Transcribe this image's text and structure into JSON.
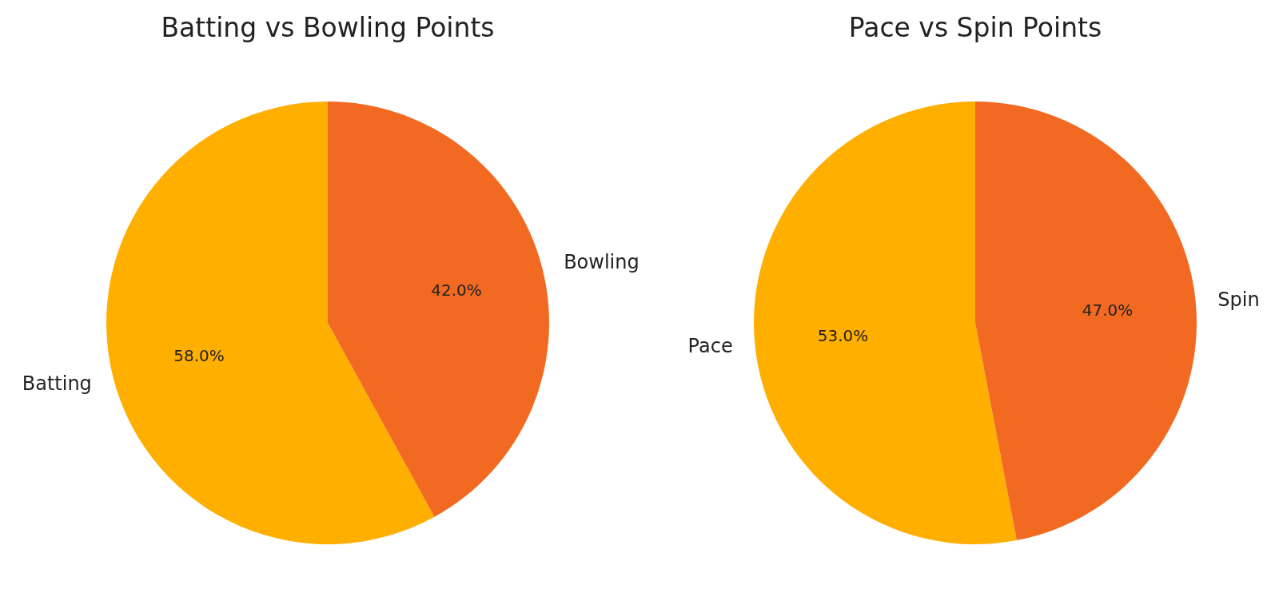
{
  "chart_data": [
    {
      "type": "pie",
      "title": "Batting vs Bowling Points",
      "categories": [
        "Batting",
        "Bowling"
      ],
      "values": [
        58,
        42
      ],
      "colors": [
        "#ffaf00",
        "#f26a21"
      ],
      "value_labels": [
        "58.0%",
        "42.0%"
      ]
    },
    {
      "type": "pie",
      "title": "Pace vs Spin Points",
      "categories": [
        "Pace",
        "Spin"
      ],
      "values": [
        53,
        47
      ],
      "colors": [
        "#ffaf00",
        "#f26a21"
      ],
      "value_labels": [
        "53.0%",
        "47.0%"
      ]
    }
  ]
}
